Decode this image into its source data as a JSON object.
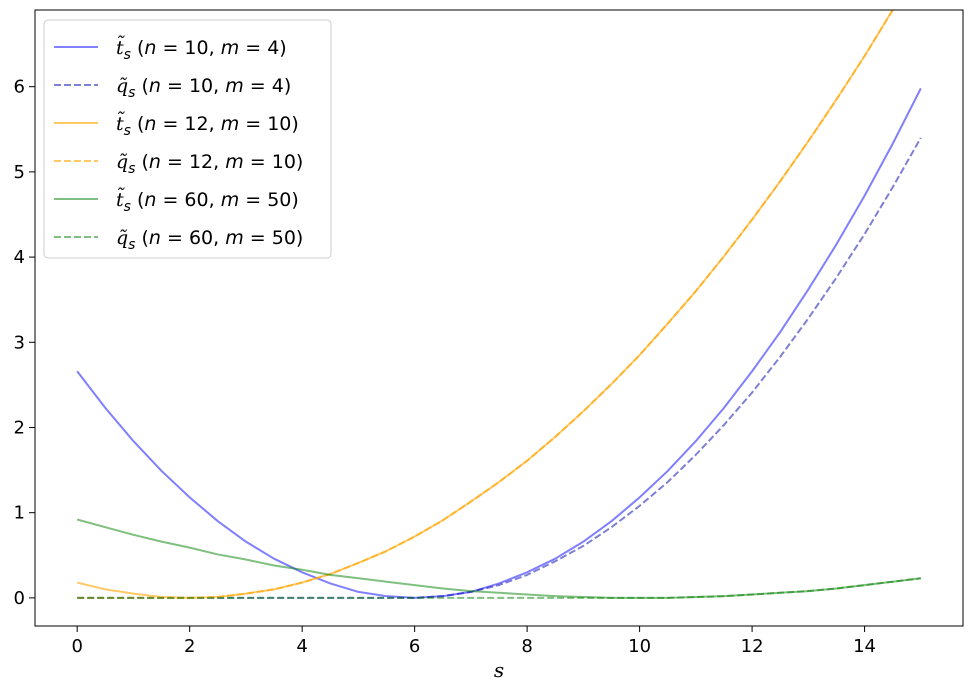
{
  "chart_data": {
    "type": "line",
    "xlabel": "s",
    "ylabel": "",
    "xlim": [
      -0.75,
      15.75
    ],
    "ylim": [
      -0.33,
      6.9
    ],
    "xticks": [
      0,
      2,
      4,
      6,
      8,
      10,
      12,
      14
    ],
    "yticks": [
      0,
      1,
      2,
      3,
      4,
      5,
      6
    ],
    "xtick_labels": [
      "0",
      "2",
      "4",
      "6",
      "8",
      "10",
      "12",
      "14"
    ],
    "ytick_labels": [
      "0",
      "1",
      "2",
      "3",
      "4",
      "5",
      "6"
    ],
    "grid": false,
    "legend_position": "top-left",
    "x": [
      0,
      0.5,
      1,
      1.5,
      2,
      2.5,
      3,
      3.5,
      4,
      4.5,
      5,
      5.5,
      6,
      6.5,
      7,
      7.5,
      8,
      8.5,
      9,
      9.5,
      10,
      10.5,
      11,
      11.5,
      12,
      12.5,
      13,
      13.5,
      14,
      14.5,
      15
    ],
    "series": [
      {
        "name": "t̃s (n = 10, m = 4)",
        "legend": {
          "sym": "t̃",
          "sub": "s",
          "n": "10",
          "m": "4"
        },
        "color": "#0000ff",
        "opacity": 0.5,
        "linestyle": "solid",
        "values": [
          2.66,
          2.23,
          1.84,
          1.49,
          1.18,
          0.9,
          0.66,
          0.46,
          0.3,
          0.17,
          0.07,
          0.02,
          0.0,
          0.02,
          0.07,
          0.17,
          0.3,
          0.46,
          0.66,
          0.9,
          1.18,
          1.49,
          1.84,
          2.23,
          2.66,
          3.12,
          3.62,
          4.15,
          4.72,
          5.33,
          5.98
        ]
      },
      {
        "name": "q̃s (n = 10, m = 4)",
        "legend": {
          "sym": "q̃",
          "sub": "s",
          "n": "10",
          "m": "4"
        },
        "color": "#0000aa",
        "opacity": 0.5,
        "linestyle": "dashed",
        "values": [
          0,
          0,
          0,
          0,
          0,
          0,
          0,
          0,
          0,
          0,
          0,
          0,
          0,
          0.02,
          0.07,
          0.15,
          0.27,
          0.43,
          0.61,
          0.83,
          1.08,
          1.36,
          1.68,
          2.03,
          2.41,
          2.83,
          3.28,
          3.76,
          4.27,
          4.82,
          5.4
        ]
      },
      {
        "name": "t̃s (n = 12, m = 10)",
        "legend": {
          "sym": "t̃",
          "sub": "s",
          "n": "12",
          "m": "10"
        },
        "color": "#ffa500",
        "opacity": 0.6,
        "linestyle": "solid",
        "values": [
          0.18,
          0.1,
          0.05,
          0.01,
          0.0,
          0.01,
          0.05,
          0.1,
          0.18,
          0.28,
          0.41,
          0.55,
          0.72,
          0.91,
          1.13,
          1.36,
          1.61,
          1.89,
          2.19,
          2.51,
          2.85,
          3.22,
          3.6,
          4.01,
          4.44,
          4.89,
          5.36,
          5.85,
          6.36,
          6.9,
          7.46
        ]
      },
      {
        "name": "q̃s (n = 12, m = 10)",
        "legend": {
          "sym": "q̃",
          "sub": "s",
          "n": "12",
          "m": "10"
        },
        "color": "#ffa500",
        "opacity": 0.6,
        "linestyle": "dashed",
        "values": [
          0,
          0,
          0,
          0,
          0,
          0.01,
          0.05,
          0.1,
          0.18,
          0.28,
          0.41,
          0.55,
          0.72,
          0.91,
          1.13,
          1.36,
          1.61,
          1.89,
          2.19,
          2.51,
          2.85,
          3.22,
          3.6,
          4.01,
          4.44,
          4.89,
          5.36,
          5.85,
          6.36,
          6.9,
          7.46
        ]
      },
      {
        "name": "t̃s (n = 60, m = 50)",
        "legend": {
          "sym": "t̃",
          "sub": "s",
          "n": "60",
          "m": "50"
        },
        "color": "#008000",
        "opacity": 0.5,
        "linestyle": "solid",
        "values": [
          0.92,
          0.83,
          0.74,
          0.66,
          0.59,
          0.51,
          0.45,
          0.38,
          0.33,
          0.27,
          0.23,
          0.19,
          0.15,
          0.11,
          0.08,
          0.06,
          0.04,
          0.02,
          0.01,
          0.0,
          0.0,
          0.0,
          0.01,
          0.02,
          0.04,
          0.06,
          0.08,
          0.11,
          0.15,
          0.19,
          0.23
        ]
      },
      {
        "name": "q̃s (n = 60, m = 50)",
        "legend": {
          "sym": "q̃",
          "sub": "s",
          "n": "60",
          "m": "50"
        },
        "color": "#008000",
        "opacity": 0.5,
        "linestyle": "dashed",
        "values": [
          0,
          0,
          0,
          0,
          0,
          0,
          0,
          0,
          0,
          0,
          0,
          0,
          0,
          0,
          0,
          0,
          0,
          0,
          0,
          0,
          0,
          0,
          0.01,
          0.02,
          0.04,
          0.06,
          0.08,
          0.11,
          0.15,
          0.19,
          0.23
        ]
      }
    ]
  }
}
